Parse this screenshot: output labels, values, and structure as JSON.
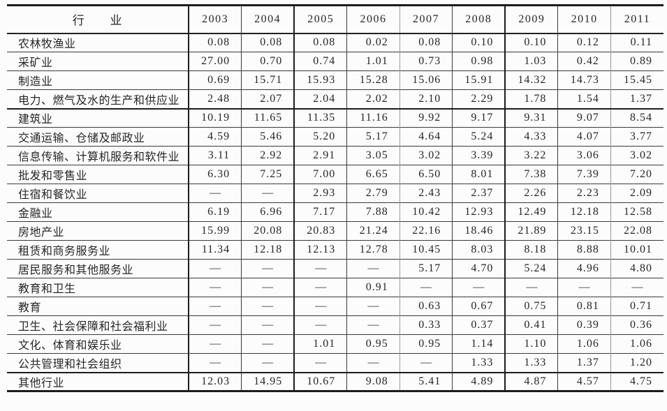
{
  "ink_color": "#262626",
  "rule_color": "#1c1c1c",
  "chart_data": {
    "type": "table",
    "corner_label": "行　　业",
    "columns": [
      "2003",
      "2004",
      "2005",
      "2006",
      "2007",
      "2008",
      "2009",
      "2010",
      "2011"
    ],
    "missing_marker": "—",
    "rows": [
      {
        "industry": "农林牧渔业",
        "values": [
          "0.08",
          "0.08",
          "0.08",
          "0.02",
          "0.08",
          "0.10",
          "0.10",
          "0.12",
          "0.11"
        ]
      },
      {
        "industry": "采矿业",
        "values": [
          "27.00",
          "0.70",
          "0.74",
          "1.01",
          "0.73",
          "0.98",
          "1.03",
          "0.42",
          "0.89"
        ]
      },
      {
        "industry": "制造业",
        "values": [
          "0.69",
          "15.71",
          "15.93",
          "15.28",
          "15.06",
          "15.91",
          "14.32",
          "14.73",
          "15.45"
        ]
      },
      {
        "industry": "电力、燃气及水的生产和供应业",
        "values": [
          "2.48",
          "2.07",
          "2.04",
          "2.02",
          "2.10",
          "2.29",
          "1.78",
          "1.54",
          "1.37"
        ]
      },
      {
        "industry": "建筑业",
        "values": [
          "10.19",
          "11.65",
          "11.35",
          "11.16",
          "9.92",
          "9.17",
          "9.31",
          "9.07",
          "8.54"
        ]
      },
      {
        "industry": "交通运输、仓储及邮政业",
        "values": [
          "4.59",
          "5.46",
          "5.20",
          "5.17",
          "4.64",
          "5.24",
          "4.33",
          "4.07",
          "3.77"
        ]
      },
      {
        "industry": "信息传输、计算机服务和软件业",
        "values": [
          "3.11",
          "2.92",
          "2.91",
          "3.05",
          "3.02",
          "3.39",
          "3.22",
          "3.06",
          "3.02"
        ]
      },
      {
        "industry": "批发和零售业",
        "values": [
          "6.30",
          "7.25",
          "7.00",
          "6.65",
          "6.50",
          "8.01",
          "7.38",
          "7.39",
          "7.20"
        ]
      },
      {
        "industry": "住宿和餐饮业",
        "values": [
          "—",
          "—",
          "2.93",
          "2.79",
          "2.43",
          "2.37",
          "2.26",
          "2.23",
          "2.09"
        ]
      },
      {
        "industry": "金融业",
        "values": [
          "6.19",
          "6.96",
          "7.17",
          "7.88",
          "10.42",
          "12.93",
          "12.49",
          "12.18",
          "12.58"
        ]
      },
      {
        "industry": "房地产业",
        "values": [
          "15.99",
          "20.08",
          "20.83",
          "21.24",
          "22.16",
          "18.46",
          "21.89",
          "23.15",
          "22.08"
        ]
      },
      {
        "industry": "租赁和商务服务业",
        "values": [
          "11.34",
          "12.18",
          "12.13",
          "12.78",
          "10.45",
          "8.03",
          "8.18",
          "8.88",
          "10.01"
        ]
      },
      {
        "industry": "居民服务和其他服务业",
        "values": [
          "—",
          "—",
          "—",
          "—",
          "5.17",
          "4.70",
          "5.24",
          "4.96",
          "4.80"
        ]
      },
      {
        "industry": "教育和卫生",
        "values": [
          "—",
          "—",
          "—",
          "0.91",
          "—",
          "—",
          "—",
          "—",
          "—"
        ]
      },
      {
        "industry": "教育",
        "values": [
          "—",
          "—",
          "—",
          "—",
          "0.63",
          "0.67",
          "0.75",
          "0.81",
          "0.71"
        ]
      },
      {
        "industry": "卫生、社会保障和社会福利业",
        "values": [
          "—",
          "—",
          "—",
          "—",
          "0.33",
          "0.37",
          "0.41",
          "0.39",
          "0.36"
        ]
      },
      {
        "industry": "文化、体育和娱乐业",
        "values": [
          "—",
          "—",
          "1.01",
          "0.95",
          "0.95",
          "1.14",
          "1.10",
          "1.06",
          "1.06"
        ]
      },
      {
        "industry": "公共管理和社会组织",
        "values": [
          "—",
          "—",
          "—",
          "—",
          "—",
          "1.33",
          "1.33",
          "1.37",
          "1.20"
        ]
      },
      {
        "industry": "其他行业",
        "values": [
          "12.03",
          "14.95",
          "10.67",
          "9.08",
          "5.41",
          "4.89",
          "4.87",
          "4.57",
          "4.75"
        ]
      }
    ]
  }
}
